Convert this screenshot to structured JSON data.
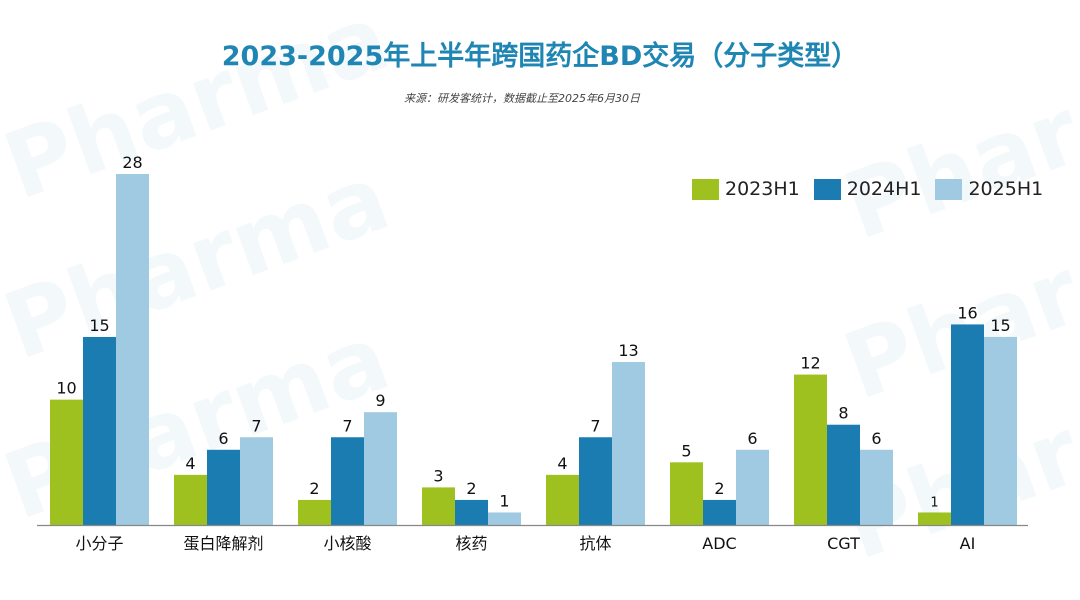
{
  "header": {
    "title": "2023-2025年上半年跨国药企BD交易（分子类型）",
    "source": "来源：研发客统计，数据截止至2025年6月30日"
  },
  "watermark": {
    "text": "Pharma 研发客"
  },
  "colors": {
    "title": "#1f86b4",
    "series_2023H1": "#9ec120",
    "series_2024H1": "#1a7cb0",
    "series_2025H1": "#9fcae2",
    "axis": "#888888"
  },
  "chart_data": {
    "type": "bar",
    "title": "2023-2025年上半年跨国药企BD交易（分子类型）",
    "subtitle": "来源：研发客统计，数据截止至2025年6月30日",
    "xlabel": "",
    "ylabel": "",
    "ylim": [
      0,
      28
    ],
    "grid": false,
    "legend_position": "top-right",
    "categories": [
      "小分子",
      "蛋白降解剂",
      "小核酸",
      "核药",
      "抗体",
      "ADC",
      "CGT",
      "AI"
    ],
    "series": [
      {
        "name": "2023H1",
        "color": "#9ec120",
        "values": [
          10,
          4,
          2,
          3,
          4,
          5,
          12,
          1
        ]
      },
      {
        "name": "2024H1",
        "color": "#1a7cb0",
        "values": [
          15,
          6,
          7,
          2,
          7,
          2,
          8,
          16
        ]
      },
      {
        "name": "2025H1",
        "color": "#9fcae2",
        "values": [
          28,
          7,
          9,
          1,
          13,
          6,
          6,
          15
        ]
      }
    ]
  }
}
